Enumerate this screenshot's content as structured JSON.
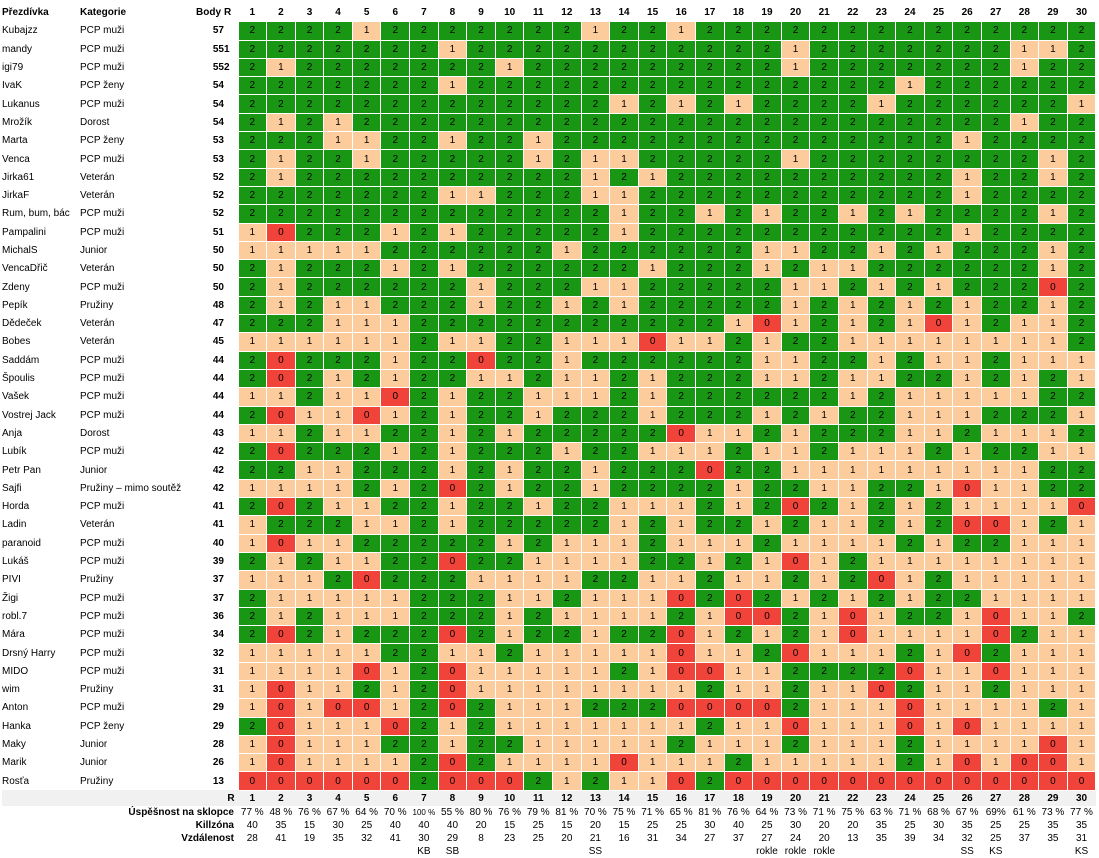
{
  "colors": {
    "score2": "#1a9615",
    "score1": "#fdcc9c",
    "score0": "#f0433a",
    "footer_band": "#f1f1f1"
  },
  "headers": {
    "nick": "Přezdívka",
    "category": "Kategorie",
    "points": "Body",
    "rank": "R"
  },
  "footer_rank_label": "R",
  "targets": [
    "1",
    "2",
    "3",
    "4",
    "5",
    "6",
    "7",
    "8",
    "9",
    "10",
    "11",
    "12",
    "13",
    "14",
    "15",
    "16",
    "17",
    "18",
    "19",
    "20",
    "21",
    "22",
    "23",
    "24",
    "25",
    "26",
    "27",
    "28",
    "29",
    "30"
  ],
  "players": [
    {
      "nick": "Kubajzz",
      "category": "PCP muži",
      "points": "57",
      "rank": "",
      "scores": "222212222222122122222222222222"
    },
    {
      "nick": "mandy",
      "category": "PCP muži",
      "points": "55",
      "rank": "1",
      "scores": "222222212222222222212222222112"
    },
    {
      "nick": "igi79",
      "category": "PCP muži",
      "points": "55",
      "rank": "2",
      "scores": "212222222122222222212222222122"
    },
    {
      "nick": "IvaK",
      "category": "PCP ženy",
      "points": "54",
      "rank": "",
      "scores": "222222212222222222222221222222"
    },
    {
      "nick": "Lukanus",
      "category": "PCP muži",
      "points": "54",
      "rank": "",
      "scores": "222222222222212121222212222221"
    },
    {
      "nick": "Mrožík",
      "category": "Dorost",
      "points": "54",
      "rank": "",
      "scores": "212122222222222222222222222122"
    },
    {
      "nick": "Marta",
      "category": "PCP ženy",
      "points": "53",
      "rank": "",
      "scores": "222112212212222222222222212222"
    },
    {
      "nick": "Venca",
      "category": "PCP muži",
      "points": "53",
      "rank": "",
      "scores": "212212222212112222212222222212"
    },
    {
      "nick": "Jirka61",
      "category": "Veterán",
      "points": "52",
      "rank": "",
      "scores": "212222222222121222222222212212"
    },
    {
      "nick": "JirkaF",
      "category": "Veterán",
      "points": "52",
      "rank": "",
      "scores": "222222211222112222222222212222"
    },
    {
      "nick": "Rum, bum, bác",
      "category": "PCP muži",
      "points": "52",
      "rank": "",
      "scores": "222222222222212212122121222212"
    },
    {
      "nick": "Pampalini",
      "category": "PCP muži",
      "points": "51",
      "rank": "",
      "scores": "102221212222212222222222212222"
    },
    {
      "nick": "MichalS",
      "category": "Junior",
      "points": "50",
      "rank": "",
      "scores": "111112222221222222112212122212"
    },
    {
      "nick": "VencaDřič",
      "category": "Veterán",
      "points": "50",
      "rank": "",
      "scores": "212221212222221222121122222212"
    },
    {
      "nick": "Zdeny",
      "category": "PCP muži",
      "points": "50",
      "rank": "",
      "scores": "212222221222112222211212122202"
    },
    {
      "nick": "Pepík",
      "category": "Pružiny",
      "points": "48",
      "rank": "",
      "scores": "212112221221212222212121212212"
    },
    {
      "nick": "Dědeček",
      "category": "Veterán",
      "points": "47",
      "rank": "",
      "scores": "222111222222222221012121012112"
    },
    {
      "nick": "Bobes",
      "category": "Veterán",
      "points": "45",
      "rank": "",
      "scores": "111111211221110112122111111112"
    },
    {
      "nick": "Saddám",
      "category": "PCP muži",
      "points": "44",
      "rank": "",
      "scores": "202221220221222222112212112111"
    },
    {
      "nick": "Špoulis",
      "category": "PCP muži",
      "points": "44",
      "rank": "",
      "scores": "202121221121121222112112212121"
    },
    {
      "nick": "Vašek",
      "category": "PCP muži",
      "points": "44",
      "rank": "",
      "scores": "112110212211121222222121111122"
    },
    {
      "nick": "Vostrej Jack",
      "category": "PCP muži",
      "points": "44",
      "rank": "",
      "scores": "201101212212221222121221112221"
    },
    {
      "nick": "Anja",
      "category": "Dorost",
      "points": "43",
      "rank": "",
      "scores": "112112212122222011212221121112"
    },
    {
      "nick": "Lubík",
      "category": "PCP muži",
      "points": "42",
      "rank": "",
      "scores": "202221212221221112112111212211"
    },
    {
      "nick": "Petr Pan",
      "category": "Junior",
      "points": "42",
      "rank": "",
      "scores": "221122212122122202211111111122"
    },
    {
      "nick": "Sajfi",
      "category": "Pružiny – mimo soutěž",
      "points": "42",
      "rank": "",
      "scores": "111121202122122221221122101122"
    },
    {
      "nick": "Horda",
      "category": "PCP muži",
      "points": "41",
      "rank": "",
      "scores": "202112212212211121202121211110"
    },
    {
      "nick": "Ladin",
      "category": "Veterán",
      "points": "41",
      "rank": "",
      "scores": "122211212222212122121121200121"
    },
    {
      "nick": "paranoid",
      "category": "PCP muži",
      "points": "40",
      "rank": "",
      "scores": "101122222121112111211112122111"
    },
    {
      "nick": "Lukáš",
      "category": "PCP muži",
      "points": "39",
      "rank": "",
      "scores": "212112202211112212101211111111"
    },
    {
      "nick": "PIVI",
      "category": "Pružiny",
      "points": "37",
      "rank": "",
      "scores": "111202221111221121121201211111"
    },
    {
      "nick": "Žigi",
      "category": "PCP muži",
      "points": "37",
      "rank": "",
      "scores": "211111222112111020212121221111"
    },
    {
      "nick": "robl.7",
      "category": "PCP muži",
      "points": "36",
      "rank": "",
      "scores": "212111222121111210021012210112"
    },
    {
      "nick": "Mára",
      "category": "PCP muži",
      "points": "34",
      "rank": "",
      "scores": "202122202122122012121011110211"
    },
    {
      "nick": "Drsný Harry",
      "category": "PCP muži",
      "points": "32",
      "rank": "",
      "scores": "111112211211111011201112102111"
    },
    {
      "nick": "MIDO",
      "category": "PCP muži",
      "points": "31",
      "rank": "",
      "scores": "111101201111121001122220110111"
    },
    {
      "nick": "wim",
      "category": "Pružiny",
      "points": "31",
      "rank": "",
      "scores": "101121201111111121121102112111"
    },
    {
      "nick": "Anton",
      "category": "PCP muži",
      "points": "29",
      "rank": "",
      "scores": "101001202111222000021110111121"
    },
    {
      "nick": "Hanka",
      "category": "PCP ženy",
      "points": "29",
      "rank": "",
      "scores": "201110212111111121101110101111"
    },
    {
      "nick": "Maky",
      "category": "Junior",
      "points": "28",
      "rank": "",
      "scores": "101112212211111211121112111101"
    },
    {
      "nick": "Marik",
      "category": "Junior",
      "points": "26",
      "rank": "",
      "scores": "101111202111101112111112101001"
    },
    {
      "nick": "Rosťa",
      "category": "Pružiny",
      "points": "13",
      "rank": "",
      "scores": "000000200021211020000000000000"
    }
  ],
  "footer": {
    "success_label": "Úspěšnost na sklopce",
    "success": [
      "77 %",
      "48 %",
      "76 %",
      "67 %",
      "64 %",
      "70 %",
      "100 %",
      "55 %",
      "80 %",
      "76 %",
      "79 %",
      "81 %",
      "70 %",
      "75 %",
      "71 %",
      "65 %",
      "81 %",
      "76 %",
      "64 %",
      "73 %",
      "71 %",
      "75 %",
      "63 %",
      "71 %",
      "68 %",
      "67 %",
      "69%",
      "61 %",
      "73 %",
      "77 %"
    ],
    "killzone_label": "Killzóna",
    "killzone": [
      "40",
      "35",
      "15",
      "30",
      "25",
      "40",
      "40",
      "40",
      "20",
      "15",
      "25",
      "15",
      "20",
      "15",
      "25",
      "25",
      "30",
      "40",
      "25",
      "30",
      "20",
      "20",
      "35",
      "25",
      "30",
      "35",
      "25",
      "25",
      "35",
      "35"
    ],
    "distance_label": "Vzdálenost",
    "distance": [
      "28",
      "41",
      "19",
      "35",
      "32",
      "41",
      "30",
      "29",
      "8",
      "23",
      "25",
      "20",
      "21",
      "16",
      "31",
      "34",
      "27",
      "37",
      "27",
      "24",
      "20",
      "13",
      "35",
      "39",
      "34",
      "32",
      "25",
      "37",
      "35",
      "31"
    ],
    "notes": [
      "",
      "",
      "",
      "",
      "",
      "",
      "KB",
      "SB",
      "",
      "",
      "",
      "",
      "SS",
      "",
      "",
      "",
      "",
      "",
      "rokle",
      "rokle",
      "rokle",
      "",
      "",
      "",
      "",
      "SS",
      "KS",
      "",
      "",
      "KS"
    ]
  }
}
